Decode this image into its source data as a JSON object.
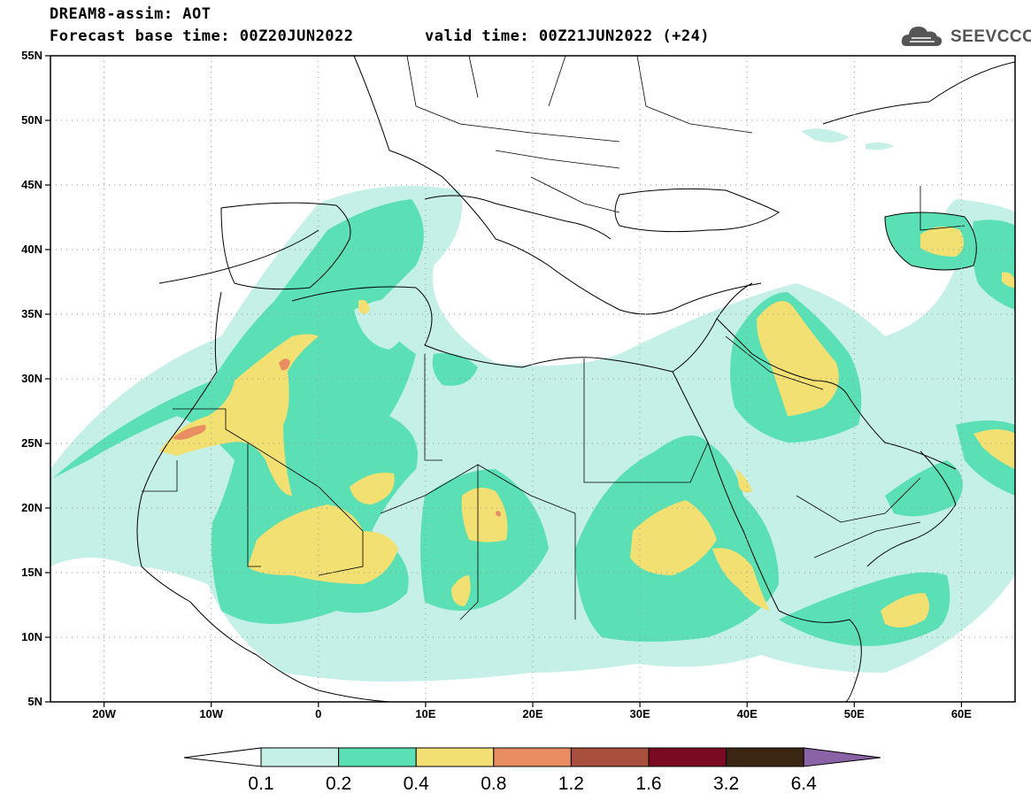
{
  "header": {
    "line1": "DREAM8-assim: AOT",
    "line2": "Forecast base time: 00Z20JUN2022",
    "valid": "valid time: 00Z21JUN2022 (+24)"
  },
  "logo": {
    "text": "SEEVCCC",
    "icon": "cloud-logo-icon"
  },
  "map": {
    "lon_range": [
      -25,
      65
    ],
    "lat_range": [
      5,
      55
    ],
    "lat_labels": [
      "55N",
      "50N",
      "45N",
      "40N",
      "35N",
      "30N",
      "25N",
      "20N",
      "15N",
      "10N",
      "5N"
    ],
    "lon_labels": [
      "20W",
      "10W",
      "0",
      "10E",
      "20E",
      "30E",
      "40E",
      "50E",
      "60E"
    ]
  },
  "colorbar": {
    "labels": [
      "0.1",
      "0.2",
      "0.4",
      "0.8",
      "1.2",
      "1.6",
      "3.2",
      "6.4"
    ],
    "colors": [
      "#ffffff",
      "#c4f0e8",
      "#5ae0b4",
      "#f2e072",
      "#e88e62",
      "#a94f3d",
      "#7a0a22",
      "#3a2612",
      "#8a62a6"
    ]
  },
  "colors": {
    "c1": "#c4f0e8",
    "c2": "#5ae0b4",
    "c3": "#f2e072",
    "c4": "#e88e62"
  }
}
